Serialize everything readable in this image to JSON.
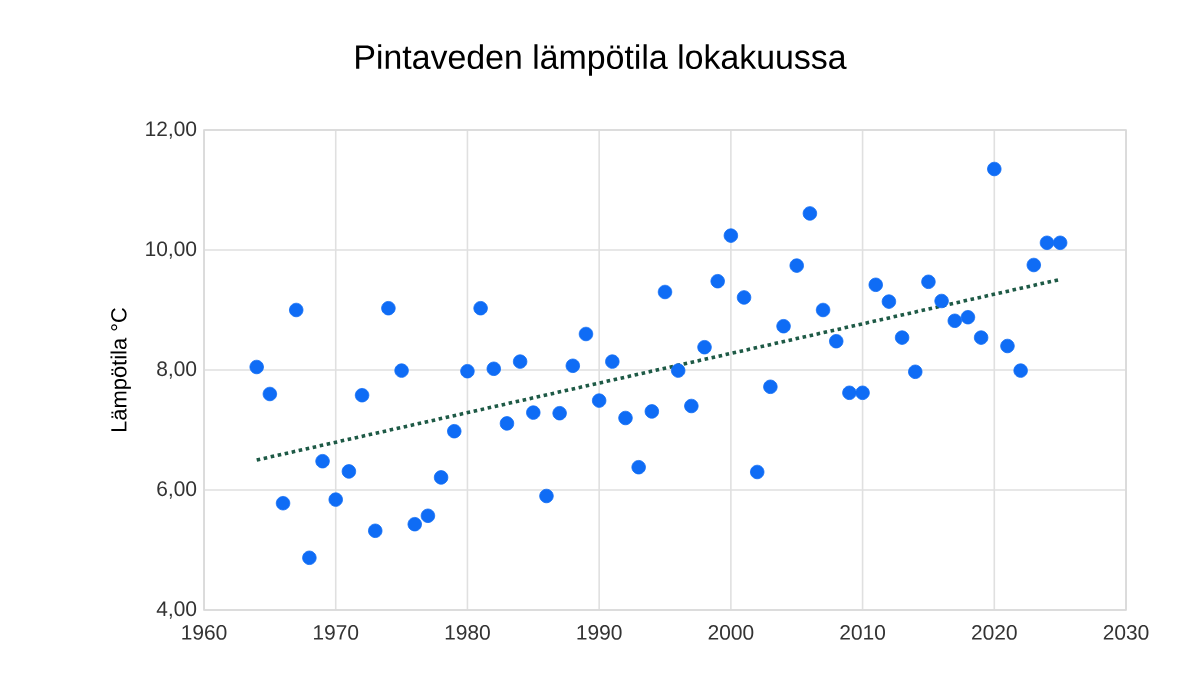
{
  "chart_data": {
    "type": "scatter",
    "title": "Pintaveden lämpötila lokakuussa",
    "ylabel": "Lämpötila °C",
    "xlim": [
      1960,
      2030
    ],
    "xticks": [
      1960,
      1970,
      1980,
      1990,
      2000,
      2010,
      2020,
      2030
    ],
    "ylim": [
      4,
      12
    ],
    "yticks": [
      {
        "value": 4,
        "label": "4,00"
      },
      {
        "value": 6,
        "label": "6,00"
      },
      {
        "value": 8,
        "label": "8,00"
      },
      {
        "value": 10,
        "label": "10,00"
      },
      {
        "value": 12,
        "label": "12,00"
      }
    ],
    "grid": true,
    "series": [
      {
        "color": "#0f6cf5",
        "marker": "circle",
        "x": [
          1964,
          1965,
          1966,
          1967,
          1968,
          1969,
          1970,
          1971,
          1972,
          1973,
          1974,
          1975,
          1976,
          1977,
          1978,
          1979,
          1980,
          1981,
          1982,
          1983,
          1984,
          1985,
          1986,
          1987,
          1988,
          1989,
          1990,
          1991,
          1992,
          1993,
          1994,
          1995,
          1996,
          1997,
          1998,
          1999,
          2000,
          2001,
          2002,
          2003,
          2004,
          2005,
          2006,
          2007,
          2008,
          2009,
          2010,
          2011,
          2012,
          2013,
          2014,
          2015,
          2016,
          2017,
          2018,
          2019,
          2020,
          2021,
          2022,
          2023,
          2024,
          2025
        ],
        "values": [
          8.05,
          7.6,
          5.78,
          9.0,
          4.87,
          6.48,
          5.84,
          6.31,
          7.58,
          5.32,
          9.03,
          7.99,
          5.43,
          5.57,
          6.21,
          6.98,
          7.98,
          9.03,
          8.02,
          7.11,
          8.14,
          7.29,
          5.9,
          7.28,
          8.07,
          8.6,
          7.49,
          8.14,
          7.2,
          6.38,
          7.31,
          9.3,
          7.99,
          7.4,
          8.38,
          9.48,
          10.24,
          9.21,
          6.3,
          7.72,
          8.73,
          9.74,
          10.61,
          9.0,
          8.48,
          7.62,
          7.62,
          9.42,
          9.14,
          8.54,
          7.97,
          9.47,
          9.15,
          8.82,
          8.88,
          8.54,
          11.35,
          8.4,
          7.99,
          9.75,
          10.12,
          10.12
        ]
      },
      {
        "type": "line",
        "color": "#1e5a46",
        "marker": "none",
        "line_style": "dotted",
        "x": [
          1964,
          2025
        ],
        "values": [
          6.5,
          9.51
        ]
      }
    ]
  }
}
